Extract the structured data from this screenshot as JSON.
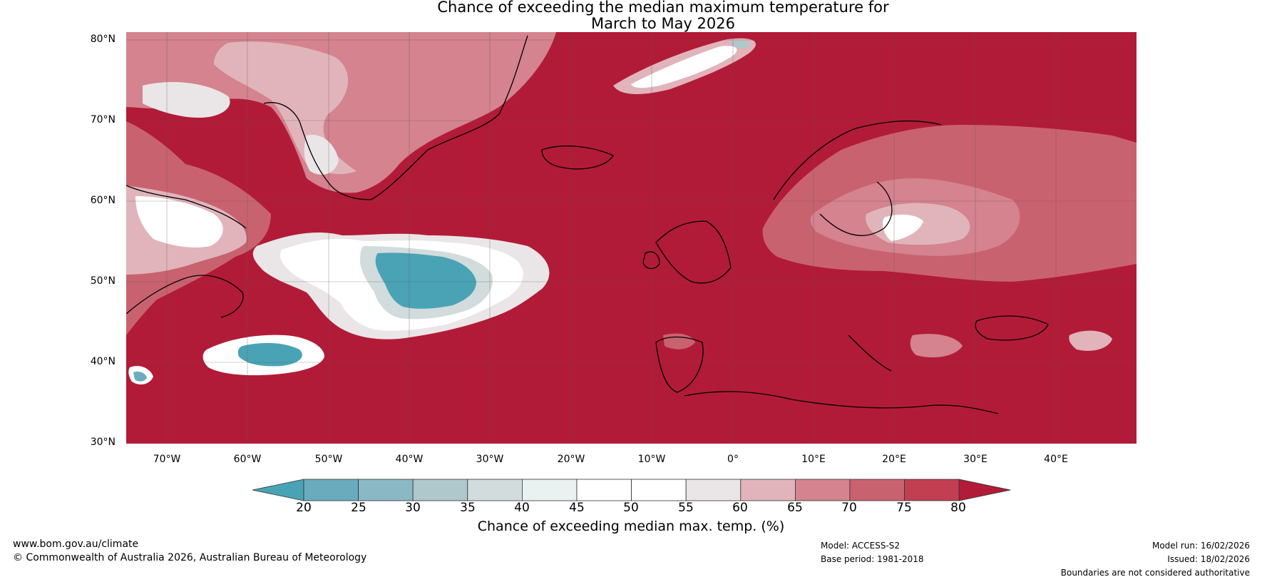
{
  "title": {
    "line1": "Chance of exceeding the median maximum temperature for",
    "line2": "March to May 2026"
  },
  "map": {
    "lat_ticks": [
      "80°N",
      "70°N",
      "60°N",
      "50°N",
      "40°N",
      "30°N"
    ],
    "lon_ticks": [
      "70°W",
      "60°W",
      "50°W",
      "40°W",
      "30°W",
      "20°W",
      "10°W",
      "0°",
      "10°E",
      "20°E",
      "30°E",
      "40°E"
    ],
    "extent": {
      "lon_min": -75,
      "lon_max": 50,
      "lat_min": 30,
      "lat_max": 81
    }
  },
  "colorbar": {
    "ticks": [
      "20",
      "25",
      "30",
      "35",
      "40",
      "45",
      "50",
      "55",
      "60",
      "65",
      "70",
      "75",
      "80"
    ],
    "colors": [
      "#4aa3b5",
      "#6aacbd",
      "#8ab8c4",
      "#aec8cc",
      "#d2dcdc",
      "#e9f1f1",
      "#ffffff",
      "#ffffff",
      "#eae6e7",
      "#e1b4bb",
      "#d4838f",
      "#c9626f",
      "#c13f50",
      "#b21b37"
    ],
    "title": "Chance of exceeding median max. temp. (%)"
  },
  "footer": {
    "url": "www.bom.gov.au/climate",
    "copyright": "© Commonwealth of Australia 2026, Australian Bureau of Meteorology",
    "model": "Model: ACCESS-S2",
    "base_period": "Base period: 1981-2018",
    "model_run": "Model run: 16/02/2026",
    "issued": "Issued: 18/02/2026",
    "disclaimer": "Boundaries are not considered authoritative"
  }
}
